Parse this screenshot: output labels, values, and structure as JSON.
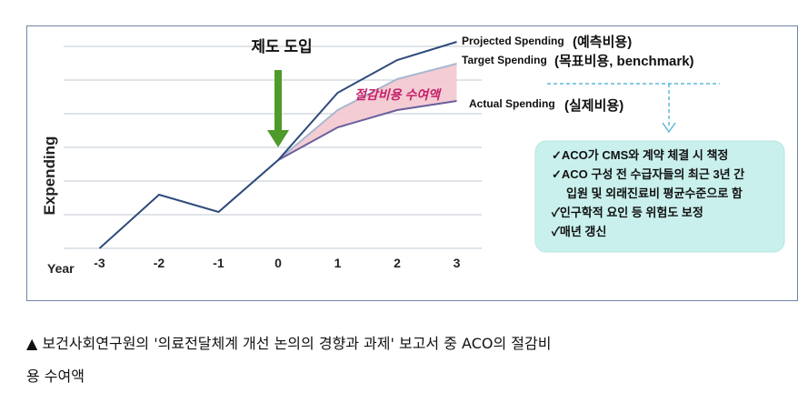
{
  "chart_data": {
    "type": "line",
    "xlabel": "Year",
    "ylabel": "Expending",
    "x": [
      -3,
      -2,
      -1,
      0,
      1,
      2,
      3
    ],
    "x_tick_labels": [
      "-3",
      "-2",
      "-1",
      "0",
      "1",
      "2",
      "3"
    ],
    "grid": "horizontal",
    "series": [
      {
        "name": "Projected Spending",
        "name_ko": "(예측비용)",
        "x": [
          -3,
          -2,
          -1,
          0,
          1,
          2,
          3
        ],
        "values": [
          0,
          59,
          40,
          97,
          171,
          207,
          227
        ],
        "color": "#2e4a7a"
      },
      {
        "name": "Target Spending",
        "name_ko": "(목표비용, benchmark)",
        "x": [
          0,
          1,
          2,
          3
        ],
        "values": [
          97,
          152,
          186,
          203
        ],
        "color": "#a8b8d0"
      },
      {
        "name": "Actual Spending",
        "name_ko": "(실제비용)",
        "x": [
          0,
          1,
          2,
          3
        ],
        "values": [
          97,
          133,
          152,
          162
        ],
        "color": "#6a5f9c"
      }
    ],
    "shaded_band": {
      "between": [
        "Target Spending",
        "Actual Spending"
      ],
      "label": "절감비용 수여액",
      "color": "#f3c7cf"
    },
    "arrow": {
      "label": "제도 도입",
      "at_x": 0,
      "color": "#4e9a2b"
    },
    "info_box": {
      "items": [
        "✓ACO가 CMS와 계약 체결 시 책정",
        "✓ACO 구성 전 수급자들의 최근 3년 간",
        "입원 및 외래진료비 평균수준으로 함",
        "✓인구학적 요인 등 위험도 보정",
        "✓매년 갱신"
      ],
      "fill": "#c9f0ec"
    }
  },
  "caption": {
    "line1": "▲ 보건사회연구원의 '의료전달체계 개선 논의의 경향과 과제' 보고서 중 ACO의 절감비",
    "line2": "용 수여액"
  }
}
